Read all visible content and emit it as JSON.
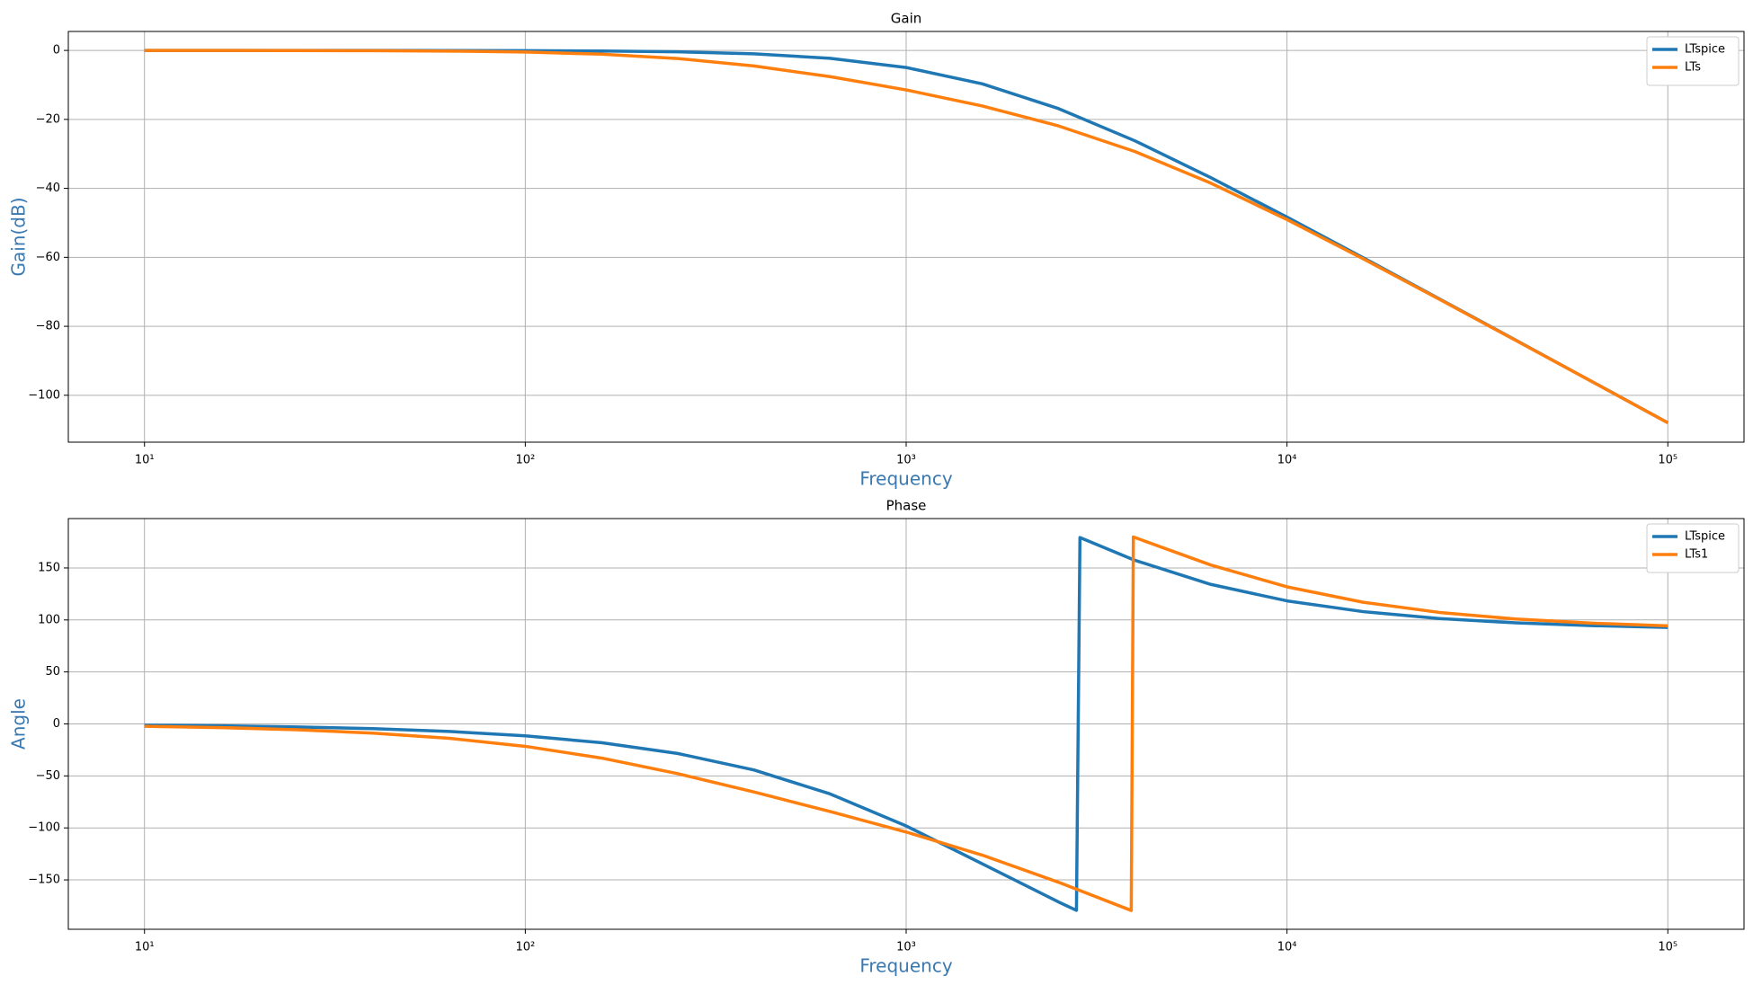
{
  "chart_data": [
    {
      "type": "line",
      "title": "Gain",
      "xlabel": "Frequency",
      "ylabel": "Gain(dB)",
      "xscale": "log",
      "grid": true,
      "legend": "upper right",
      "xlim": [
        6.31,
        158500
      ],
      "xticks": [
        {
          "value": 10,
          "label": "10¹"
        },
        {
          "value": 100,
          "label": "10²"
        },
        {
          "value": 1000,
          "label": "10³"
        },
        {
          "value": 10000,
          "label": "10⁴"
        },
        {
          "value": 100000,
          "label": "10⁵"
        }
      ],
      "ylim": [
        -113.6,
        5.5
      ],
      "yticks": [
        {
          "value": -100,
          "label": "−100"
        },
        {
          "value": -80,
          "label": "−80"
        },
        {
          "value": -60,
          "label": "−60"
        },
        {
          "value": -40,
          "label": "−40"
        },
        {
          "value": -20,
          "label": "−20"
        },
        0
      ],
      "x": [
        10,
        15.85,
        25.12,
        39.81,
        63.1,
        100,
        158.5,
        251.2,
        398.1,
        631,
        1000,
        1585,
        2512,
        3981,
        6310,
        10000,
        15850,
        25120,
        39810,
        63100,
        100000
      ],
      "series": [
        {
          "name": "LTspice",
          "color": "#1f77b4",
          "values": [
            -0.001,
            -0.002,
            -0.004,
            -0.01,
            -0.026,
            -0.065,
            -0.162,
            -0.4,
            -0.98,
            -2.28,
            -4.95,
            -9.69,
            -16.87,
            -26.18,
            -36.9,
            -48.34,
            -60.12,
            -72.03,
            -83.98,
            -95.97,
            -107.96
          ]
        },
        {
          "name": "LTs",
          "color": "#ff7f0e",
          "values": [
            -0.005,
            -0.012,
            -0.03,
            -0.08,
            -0.19,
            -0.46,
            -1.09,
            -2.35,
            -4.51,
            -7.6,
            -11.46,
            -16.11,
            -21.89,
            -29.29,
            -38.49,
            -49.05,
            -60.42,
            -72.15,
            -84.04,
            -96.0,
            -107.98
          ]
        }
      ]
    },
    {
      "type": "line",
      "title": "Phase",
      "xlabel": "Frequency",
      "ylabel": "Angle",
      "xscale": "log",
      "grid": true,
      "legend": "upper right",
      "xlim": [
        6.31,
        158500
      ],
      "xticks": [
        {
          "value": 10,
          "label": "10¹"
        },
        {
          "value": 100,
          "label": "10²"
        },
        {
          "value": 1000,
          "label": "10³"
        },
        {
          "value": 10000,
          "label": "10⁴"
        },
        {
          "value": 100000,
          "label": "10⁵"
        }
      ],
      "ylim": [
        -197.5,
        197.5
      ],
      "yticks": [
        {
          "value": -150,
          "label": "−150"
        },
        {
          "value": -100,
          "label": "−100"
        },
        {
          "value": -50,
          "label": "−50"
        },
        0,
        50,
        100,
        150
      ],
      "series": [
        {
          "name": "LTspice",
          "color": "#1f77b4",
          "x": [
            10,
            15.85,
            25.12,
            39.81,
            63.1,
            100,
            158.5,
            251.2,
            398.1,
            631,
            1000,
            1585,
            2512,
            2800,
            2860,
            3981,
            6310,
            10000,
            15850,
            25120,
            39810,
            63100,
            100000
          ],
          "values": [
            -1.15,
            -1.82,
            -2.88,
            -4.56,
            -7.22,
            -11.44,
            -18.07,
            -28.42,
            -44.21,
            -67.27,
            -98.13,
            -134.55,
            -171.23,
            -179.28,
            179.21,
            157.44,
            134.17,
            118.33,
            107.99,
            101.38,
            97.19,
            94.54,
            92.86
          ]
        },
        {
          "name": "LTs1",
          "color": "#ff7f0e",
          "x": [
            10,
            15.85,
            25.12,
            39.81,
            63.1,
            100,
            158.5,
            251.2,
            398.1,
            631,
            1000,
            1585,
            2512,
            3900,
            3950,
            3981,
            6310,
            10000,
            15850,
            25120,
            39810,
            63100,
            100000
          ],
          "values": [
            -2.22,
            -3.52,
            -5.58,
            -8.81,
            -13.86,
            -21.57,
            -32.82,
            -47.81,
            -65.44,
            -84.19,
            -103.94,
            -126.22,
            -152.27,
            -179.4,
            179.82,
            179.35,
            152.82,
            131.82,
            117.02,
            107.22,
            100.91,
            96.89,
            94.35
          ]
        }
      ]
    }
  ]
}
